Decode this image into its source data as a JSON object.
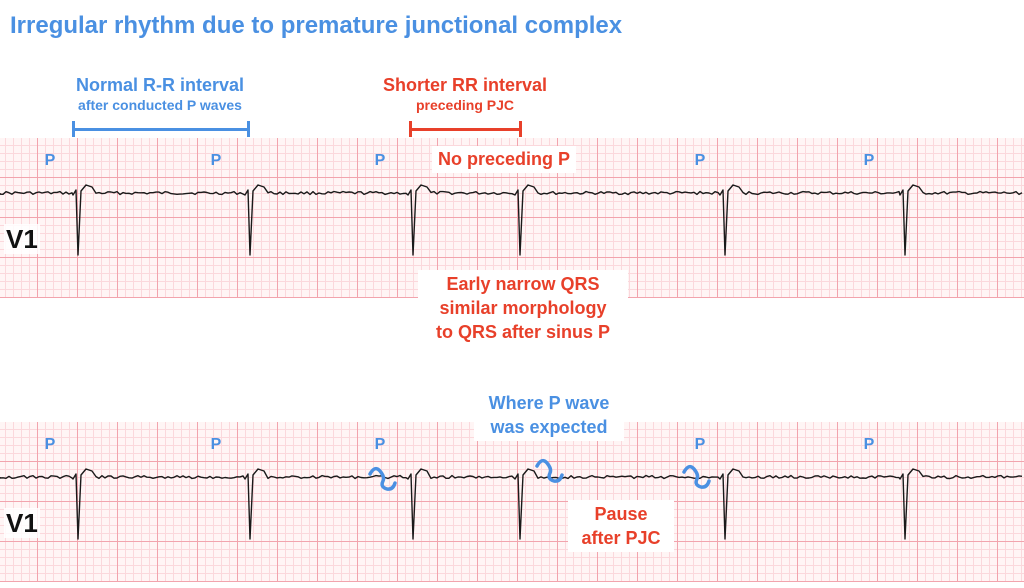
{
  "title": "Irregular rhythm due to premature junctional complex",
  "colors": {
    "blue": "#4a90e2",
    "red": "#e8402a",
    "grid_major": "#f2a4ad",
    "grid_minor": "#fbd8dc",
    "trace": "#1a1a1a"
  },
  "annotations": {
    "normal_rr_main": "Normal R-R interval",
    "normal_rr_sub": "after conducted P waves",
    "shorter_rr_main": "Shorter RR interval",
    "shorter_rr_sub": "preceding PJC",
    "no_preceding_p": "No preceding P",
    "early_qrs_line1": "Early narrow QRS",
    "early_qrs_line2": "similar morphology",
    "early_qrs_line3": "to QRS after sinus P",
    "where_p_line1": "Where P wave",
    "where_p_line2": "was expected",
    "pause_line1": "Pause",
    "pause_line2": "after PJC"
  },
  "strips": [
    {
      "lead": "V1",
      "p_labels": [
        "P",
        "P",
        "P",
        "P",
        "P"
      ]
    },
    {
      "lead": "V1",
      "p_labels": [
        "P",
        "P",
        "P",
        "P",
        "P"
      ]
    }
  ]
}
